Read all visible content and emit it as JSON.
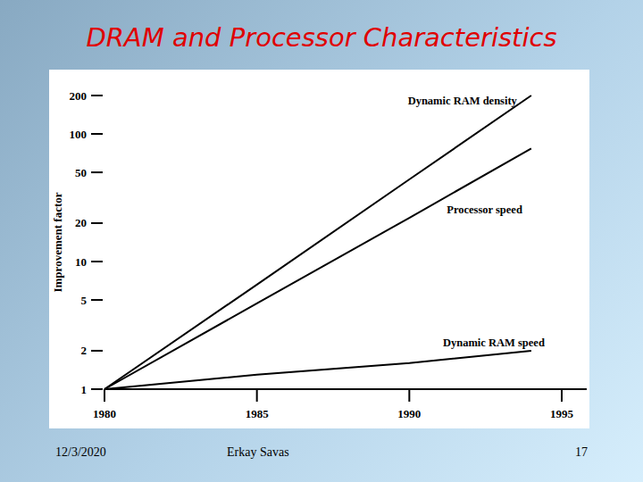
{
  "chart_data": {
    "type": "line",
    "title": "DRAM and Processor Characteristics",
    "y_label": "Improvement factor",
    "x": [
      1980,
      1985,
      1990,
      1994
    ],
    "series": [
      {
        "name": "Dynamic RAM density",
        "color": "#000000",
        "values": [
          1,
          6.6,
          44,
          200
        ]
      },
      {
        "name": "Processor speed",
        "color": "#000000",
        "values": [
          1,
          4.7,
          22,
          77
        ]
      },
      {
        "name": "Dynamic RAM speed",
        "color": "#000000",
        "values": [
          1,
          1.3,
          1.6,
          2
        ]
      }
    ],
    "xlim": [
      1980,
      1995
    ],
    "xticks": [
      1980,
      1985,
      1990,
      1995
    ],
    "ylim": [
      1,
      200
    ],
    "yticks": [
      1,
      2,
      5,
      10,
      20,
      50,
      100,
      200
    ],
    "log": "y",
    "grid": false
  },
  "footer": {
    "date": "12/3/2020",
    "author": "Erkay Savas",
    "page": "17"
  }
}
